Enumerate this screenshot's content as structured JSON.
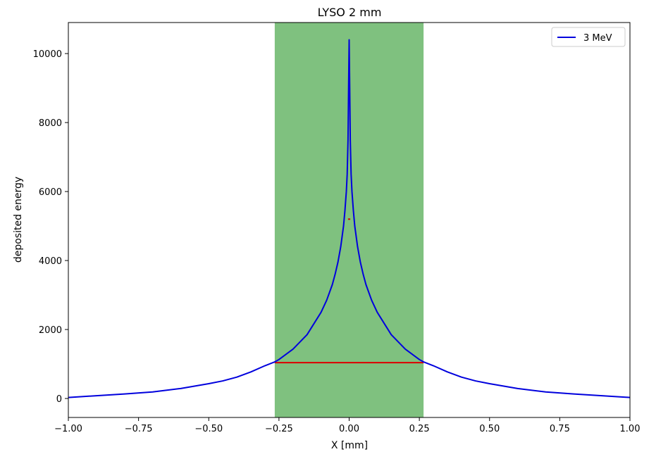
{
  "chart_data": {
    "type": "line",
    "title": "LYSO 2 mm",
    "xlabel": "X [mm]",
    "ylabel": "deposited energy",
    "xlim": [
      -1.0,
      1.0
    ],
    "ylim": [
      -550,
      10900
    ],
    "x_ticks": [
      -1.0,
      -0.75,
      -0.5,
      -0.25,
      0.0,
      0.25,
      0.5,
      0.75,
      1.0
    ],
    "x_tick_labels": [
      "−1.00",
      "−0.75",
      "−0.50",
      "−0.25",
      "0.00",
      "0.25",
      "0.50",
      "0.75",
      "1.00"
    ],
    "y_ticks": [
      0,
      2000,
      4000,
      6000,
      8000,
      10000
    ],
    "y_tick_labels": [
      "0",
      "2000",
      "4000",
      "6000",
      "8000",
      "10000"
    ],
    "grid": false,
    "legend_position": "top-right",
    "shaded_region": {
      "x_start": -0.265,
      "x_end": 0.265,
      "color": "#7fc17f"
    },
    "series": [
      {
        "name": "3 MeV",
        "color": "#0000dd",
        "x": [
          -1.0,
          -0.9,
          -0.8,
          -0.7,
          -0.6,
          -0.5,
          -0.45,
          -0.4,
          -0.35,
          -0.3,
          -0.265,
          -0.25,
          -0.2,
          -0.15,
          -0.1,
          -0.08,
          -0.06,
          -0.05,
          -0.04,
          -0.03,
          -0.02,
          -0.015,
          -0.01,
          -0.007,
          -0.004,
          -0.002,
          0.0,
          0.002,
          0.004,
          0.007,
          0.01,
          0.015,
          0.02,
          0.03,
          0.04,
          0.05,
          0.06,
          0.08,
          0.1,
          0.15,
          0.2,
          0.25,
          0.265,
          0.3,
          0.35,
          0.4,
          0.45,
          0.5,
          0.6,
          0.7,
          0.8,
          0.9,
          1.0
        ],
        "y": [
          30,
          80,
          130,
          190,
          290,
          430,
          510,
          620,
          770,
          950,
          1060,
          1130,
          1430,
          1850,
          2500,
          2850,
          3300,
          3600,
          3950,
          4400,
          5000,
          5450,
          6000,
          6500,
          7500,
          9000,
          10400,
          9000,
          7500,
          6500,
          6000,
          5450,
          5000,
          4400,
          3950,
          3600,
          3300,
          2850,
          2500,
          1850,
          1430,
          1130,
          1060,
          950,
          770,
          620,
          510,
          430,
          290,
          190,
          130,
          80,
          30
        ]
      }
    ],
    "markers": [
      {
        "color": "#dd0000",
        "x_start": -0.265,
        "x_end": 0.265,
        "y": 1040
      },
      {
        "color": "#dd0000",
        "x_start": -0.004,
        "x_end": 0.004,
        "y": 5200
      }
    ]
  }
}
